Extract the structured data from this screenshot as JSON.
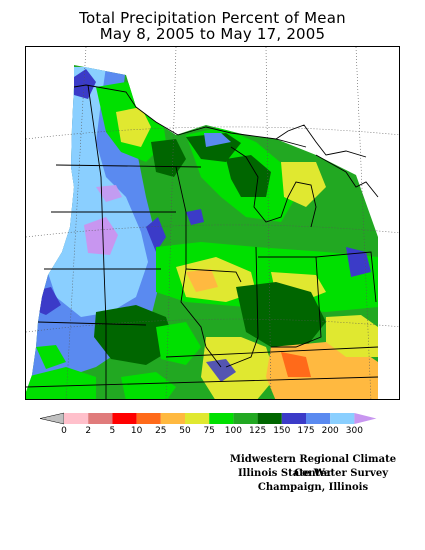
{
  "title": {
    "line1": "Total Precipitation Percent of Mean",
    "line2": "May 8, 2005 to May 17, 2005"
  },
  "legend": {
    "ticks": [
      "0",
      "2",
      "5",
      "10",
      "25",
      "50",
      "75",
      "100",
      "125",
      "150",
      "175",
      "200",
      "300"
    ],
    "colors": [
      "#ffc0cb",
      "#e07b7b",
      "#ff0000",
      "#ff6a1a",
      "#ffb940",
      "#e0e830",
      "#00e000",
      "#22a822",
      "#006600",
      "#3b3bc8",
      "#5a8af0",
      "#8acfff",
      "#c896f0"
    ],
    "under_color": "#c0c0c0",
    "over_color": "#c896f0"
  },
  "credits": {
    "line1": "Midwestern Regional Climate Center",
    "line2": "Illinois State Water Survey",
    "line3": "Champaign, Illinois"
  }
}
